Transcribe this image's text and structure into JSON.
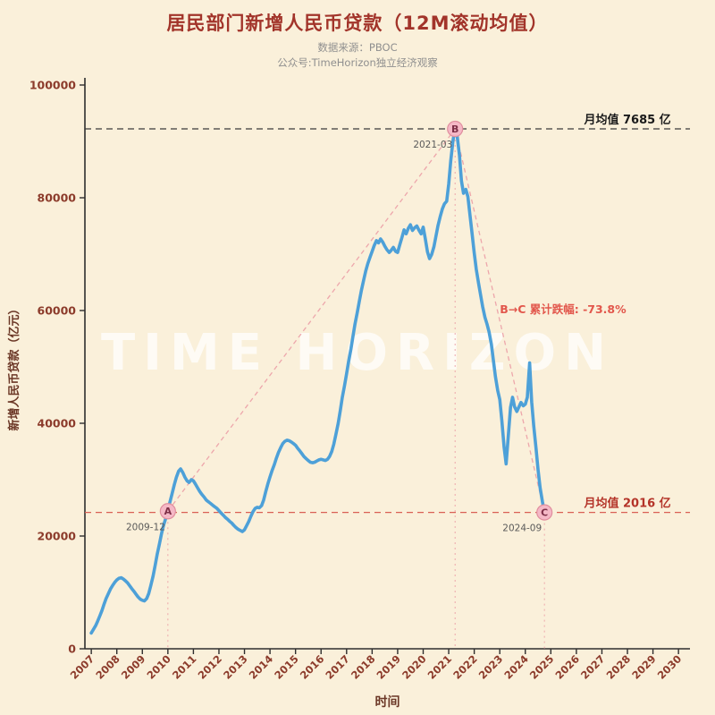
{
  "header": {
    "title": "居民部门新增人民币贷款（12M滚动均值）",
    "subtitle1": "数据来源：PBOC",
    "subtitle2": "公众号:TimeHorizon独立经济观察"
  },
  "watermark": "TIME HORIZON",
  "chart_data": {
    "type": "line",
    "title": "居民部门新增人民币贷款（12M滚动均值）",
    "xlabel": "时间",
    "ylabel": "新增人民币贷款（亿元）",
    "xlim": [
      2006.75,
      2030.45
    ],
    "ylim": [
      0,
      100000
    ],
    "x_ticks": [
      2007,
      2008,
      2009,
      2010,
      2011,
      2012,
      2013,
      2014,
      2015,
      2016,
      2017,
      2018,
      2019,
      2020,
      2021,
      2022,
      2023,
      2024,
      2025,
      2026,
      2027,
      2028,
      2029,
      2030
    ],
    "y_ticks": [
      0,
      20000,
      40000,
      60000,
      80000,
      100000
    ],
    "grid": false,
    "legend": false,
    "colors": {
      "background": "#FAF0DA",
      "title": "#A2342A",
      "subtitle": "#8F8F8F",
      "axis": "#2E2E2E",
      "tick_label": "#8C3B2B",
      "axis_title": "#6B3726",
      "line": "#4DA0D8",
      "marker_fill": "#F5B8C6",
      "marker_stroke": "#E08E9E",
      "marker_letter": "#7E2F47",
      "trend": "#EDA6AB",
      "date_label": "#5A5A5A",
      "watermark": "rgba(255,255,255,0.72)"
    },
    "series": [
      {
        "name": "居民部门新增人民币贷款 12M滚动均值",
        "points": [
          [
            2007.0,
            2800
          ],
          [
            2007.08,
            3400
          ],
          [
            2007.17,
            4100
          ],
          [
            2007.25,
            4900
          ],
          [
            2007.33,
            5800
          ],
          [
            2007.42,
            6800
          ],
          [
            2007.5,
            7900
          ],
          [
            2007.58,
            8900
          ],
          [
            2007.67,
            9800
          ],
          [
            2007.75,
            10600
          ],
          [
            2007.83,
            11200
          ],
          [
            2007.92,
            11800
          ],
          [
            2008.0,
            12200
          ],
          [
            2008.08,
            12500
          ],
          [
            2008.17,
            12600
          ],
          [
            2008.25,
            12400
          ],
          [
            2008.33,
            12100
          ],
          [
            2008.42,
            11700
          ],
          [
            2008.5,
            11200
          ],
          [
            2008.58,
            10700
          ],
          [
            2008.67,
            10200
          ],
          [
            2008.75,
            9700
          ],
          [
            2008.83,
            9200
          ],
          [
            2008.92,
            8800
          ],
          [
            2009.0,
            8600
          ],
          [
            2009.08,
            8500
          ],
          [
            2009.17,
            8900
          ],
          [
            2009.25,
            9800
          ],
          [
            2009.33,
            11200
          ],
          [
            2009.42,
            12900
          ],
          [
            2009.5,
            14800
          ],
          [
            2009.58,
            16700
          ],
          [
            2009.67,
            18600
          ],
          [
            2009.75,
            20400
          ],
          [
            2009.83,
            21900
          ],
          [
            2009.92,
            23200
          ],
          [
            2010.0,
            24400
          ],
          [
            2010.08,
            26000
          ],
          [
            2010.17,
            27600
          ],
          [
            2010.25,
            29100
          ],
          [
            2010.33,
            30400
          ],
          [
            2010.42,
            31500
          ],
          [
            2010.5,
            31900
          ],
          [
            2010.58,
            31300
          ],
          [
            2010.67,
            30400
          ],
          [
            2010.75,
            29800
          ],
          [
            2010.83,
            29500
          ],
          [
            2010.92,
            30000
          ],
          [
            2011.0,
            29800
          ],
          [
            2011.08,
            29200
          ],
          [
            2011.17,
            28500
          ],
          [
            2011.25,
            27900
          ],
          [
            2011.33,
            27400
          ],
          [
            2011.42,
            26900
          ],
          [
            2011.5,
            26400
          ],
          [
            2011.58,
            26100
          ],
          [
            2011.67,
            25800
          ],
          [
            2011.75,
            25500
          ],
          [
            2011.83,
            25200
          ],
          [
            2011.92,
            24900
          ],
          [
            2012.0,
            24500
          ],
          [
            2012.08,
            24100
          ],
          [
            2012.17,
            23700
          ],
          [
            2012.25,
            23300
          ],
          [
            2012.33,
            23000
          ],
          [
            2012.42,
            22600
          ],
          [
            2012.5,
            22300
          ],
          [
            2012.58,
            21900
          ],
          [
            2012.67,
            21500
          ],
          [
            2012.75,
            21200
          ],
          [
            2012.83,
            21000
          ],
          [
            2012.92,
            20800
          ],
          [
            2013.0,
            21100
          ],
          [
            2013.08,
            21800
          ],
          [
            2013.17,
            22600
          ],
          [
            2013.25,
            23500
          ],
          [
            2013.33,
            24300
          ],
          [
            2013.42,
            24900
          ],
          [
            2013.5,
            25100
          ],
          [
            2013.58,
            25000
          ],
          [
            2013.67,
            25400
          ],
          [
            2013.75,
            26400
          ],
          [
            2013.83,
            27800
          ],
          [
            2013.92,
            29300
          ],
          [
            2014.0,
            30500
          ],
          [
            2014.08,
            31600
          ],
          [
            2014.17,
            32700
          ],
          [
            2014.25,
            33800
          ],
          [
            2014.33,
            34800
          ],
          [
            2014.42,
            35700
          ],
          [
            2014.5,
            36400
          ],
          [
            2014.58,
            36800
          ],
          [
            2014.67,
            37000
          ],
          [
            2014.75,
            36900
          ],
          [
            2014.83,
            36700
          ],
          [
            2014.92,
            36400
          ],
          [
            2015.0,
            36100
          ],
          [
            2015.08,
            35600
          ],
          [
            2015.17,
            35100
          ],
          [
            2015.25,
            34600
          ],
          [
            2015.33,
            34100
          ],
          [
            2015.42,
            33700
          ],
          [
            2015.5,
            33400
          ],
          [
            2015.58,
            33100
          ],
          [
            2015.67,
            33000
          ],
          [
            2015.75,
            33100
          ],
          [
            2015.83,
            33300
          ],
          [
            2015.92,
            33500
          ],
          [
            2016.0,
            33600
          ],
          [
            2016.08,
            33500
          ],
          [
            2016.17,
            33400
          ],
          [
            2016.25,
            33600
          ],
          [
            2016.33,
            34100
          ],
          [
            2016.42,
            35000
          ],
          [
            2016.5,
            36300
          ],
          [
            2016.58,
            38000
          ],
          [
            2016.67,
            40000
          ],
          [
            2016.75,
            42200
          ],
          [
            2016.83,
            44500
          ],
          [
            2016.92,
            46700
          ],
          [
            2017.0,
            48800
          ],
          [
            2017.08,
            51000
          ],
          [
            2017.17,
            53200
          ],
          [
            2017.25,
            55400
          ],
          [
            2017.33,
            57600
          ],
          [
            2017.42,
            59700
          ],
          [
            2017.5,
            61700
          ],
          [
            2017.58,
            63600
          ],
          [
            2017.67,
            65400
          ],
          [
            2017.75,
            67000
          ],
          [
            2017.83,
            68300
          ],
          [
            2017.92,
            69500
          ],
          [
            2018.0,
            70500
          ],
          [
            2018.08,
            71500
          ],
          [
            2018.17,
            72400
          ],
          [
            2018.25,
            72000
          ],
          [
            2018.33,
            72700
          ],
          [
            2018.42,
            72100
          ],
          [
            2018.5,
            71400
          ],
          [
            2018.58,
            70800
          ],
          [
            2018.67,
            70300
          ],
          [
            2018.75,
            70700
          ],
          [
            2018.83,
            71200
          ],
          [
            2018.92,
            70500
          ],
          [
            2019.0,
            70300
          ],
          [
            2019.08,
            71600
          ],
          [
            2019.17,
            73000
          ],
          [
            2019.25,
            74300
          ],
          [
            2019.33,
            73600
          ],
          [
            2019.42,
            74600
          ],
          [
            2019.5,
            75200
          ],
          [
            2019.58,
            74200
          ],
          [
            2019.67,
            74700
          ],
          [
            2019.75,
            75000
          ],
          [
            2019.83,
            74300
          ],
          [
            2019.92,
            73600
          ],
          [
            2020.0,
            74800
          ],
          [
            2020.08,
            72800
          ],
          [
            2020.17,
            70400
          ],
          [
            2020.25,
            69200
          ],
          [
            2020.33,
            69900
          ],
          [
            2020.42,
            71300
          ],
          [
            2020.5,
            73200
          ],
          [
            2020.58,
            75100
          ],
          [
            2020.67,
            76700
          ],
          [
            2020.75,
            78000
          ],
          [
            2020.83,
            78900
          ],
          [
            2020.92,
            79400
          ],
          [
            2021.0,
            82500
          ],
          [
            2021.08,
            86500
          ],
          [
            2021.17,
            90200
          ],
          [
            2021.25,
            92220
          ],
          [
            2021.33,
            91000
          ],
          [
            2021.42,
            87500
          ],
          [
            2021.5,
            83000
          ],
          [
            2021.58,
            80800
          ],
          [
            2021.67,
            81500
          ],
          [
            2021.75,
            80200
          ],
          [
            2021.83,
            77000
          ],
          [
            2021.92,
            73500
          ],
          [
            2022.0,
            70200
          ],
          [
            2022.08,
            67300
          ],
          [
            2022.17,
            64800
          ],
          [
            2022.25,
            62700
          ],
          [
            2022.33,
            60700
          ],
          [
            2022.42,
            58800
          ],
          [
            2022.5,
            57600
          ],
          [
            2022.58,
            56200
          ],
          [
            2022.67,
            54000
          ],
          [
            2022.75,
            51200
          ],
          [
            2022.83,
            48300
          ],
          [
            2022.92,
            45800
          ],
          [
            2023.0,
            44200
          ],
          [
            2023.08,
            40500
          ],
          [
            2023.17,
            35800
          ],
          [
            2023.25,
            32800
          ],
          [
            2023.33,
            37500
          ],
          [
            2023.42,
            42800
          ],
          [
            2023.5,
            44600
          ],
          [
            2023.58,
            42900
          ],
          [
            2023.67,
            42100
          ],
          [
            2023.75,
            42900
          ],
          [
            2023.83,
            43700
          ],
          [
            2023.92,
            43100
          ],
          [
            2024.0,
            43400
          ],
          [
            2024.08,
            44600
          ],
          [
            2024.17,
            50700
          ],
          [
            2024.25,
            43800
          ],
          [
            2024.33,
            39500
          ],
          [
            2024.42,
            35500
          ],
          [
            2024.5,
            31800
          ],
          [
            2024.58,
            28600
          ],
          [
            2024.67,
            26100
          ],
          [
            2024.75,
            24192
          ]
        ]
      }
    ],
    "annotations": {
      "points": [
        {
          "id": "A",
          "label": "A",
          "date_label": "2009-12",
          "x": 2010.0,
          "y": 24400
        },
        {
          "id": "B",
          "label": "B",
          "date_label": "2021-03",
          "x": 2021.25,
          "y": 92220
        },
        {
          "id": "C",
          "label": "C",
          "date_label": "2024-09",
          "x": 2024.75,
          "y": 24192
        }
      ],
      "hlines": [
        {
          "y": 92220,
          "label": "月均值 7685 亿",
          "label_x": 2026.3,
          "color": "#3A3A3A",
          "label_color": "#1A1A1A"
        },
        {
          "y": 24192,
          "label": "月均值 2016 亿",
          "label_x": 2026.3,
          "color": "#D96055",
          "label_color": "#B43328"
        }
      ],
      "trend_lines": [
        [
          "A",
          "B"
        ],
        [
          "B",
          "C"
        ]
      ],
      "drop_note": {
        "text": "B→C 累计跌幅: -73.8%",
        "x": 2023.0,
        "y": 59500,
        "color": "#E2574C"
      }
    }
  }
}
